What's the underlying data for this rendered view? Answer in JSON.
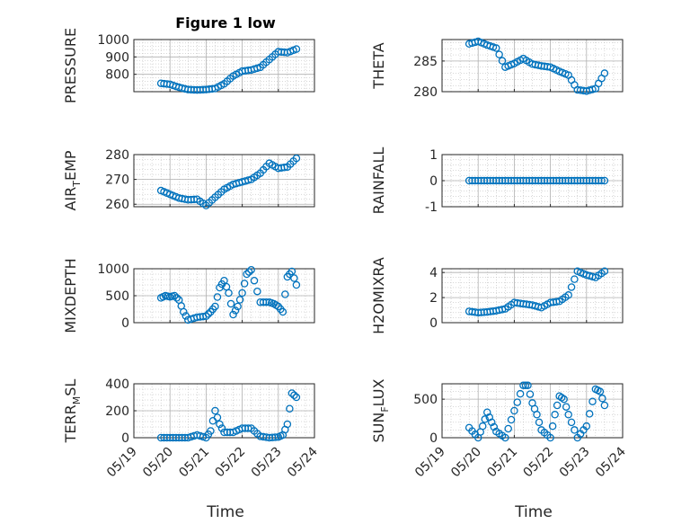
{
  "figure": {
    "title": "Figure 1 low"
  },
  "colors": {
    "marker": "#0072BD",
    "axis": "#262626",
    "grid": "#b0b0b0",
    "background": "#ffffff"
  },
  "chart_data": [
    {
      "type": "scatter",
      "ylabel": "PRESSURE",
      "ylabel_sub": "",
      "ylabel_rest": "",
      "yticks": [
        "800",
        "900",
        "1000"
      ],
      "ylim": [
        700,
        1000
      ],
      "ytick_values": [
        800,
        900,
        1000
      ],
      "x": [
        "05/19 18:00",
        "05/20 00:00",
        "05/20 06:00",
        "05/20 12:00",
        "05/20 18:00",
        "05/21 00:00",
        "05/21 06:00",
        "05/21 12:00",
        "05/21 18:00",
        "05/22 00:00",
        "05/22 06:00",
        "05/22 12:00",
        "05/22 18:00",
        "05/23 00:00",
        "05/23 06:00",
        "05/23 12:00"
      ],
      "y": [
        748,
        742,
        725,
        712,
        710,
        712,
        718,
        745,
        790,
        818,
        825,
        840,
        885,
        930,
        925,
        945
      ]
    },
    {
      "type": "scatter",
      "ylabel": "THETA",
      "ylabel_sub": "",
      "ylabel_rest": "",
      "yticks": [
        "280",
        "285"
      ],
      "ylim": [
        280,
        288.5
      ],
      "ytick_values": [
        280,
        285
      ],
      "x": [
        "05/19 18:00",
        "05/20 00:00",
        "05/20 06:00",
        "05/20 12:00",
        "05/20 18:00",
        "05/21 00:00",
        "05/21 06:00",
        "05/21 12:00",
        "05/21 18:00",
        "05/22 00:00",
        "05/22 06:00",
        "05/22 12:00",
        "05/22 18:00",
        "05/23 00:00",
        "05/23 06:00",
        "05/23 12:00"
      ],
      "y": [
        287.8,
        288.2,
        287.6,
        287.1,
        284.0,
        284.6,
        285.4,
        284.5,
        284.2,
        284.0,
        283.3,
        282.7,
        280.3,
        280.1,
        280.5,
        283.0
      ]
    },
    {
      "type": "scatter",
      "ylabel": "AIR",
      "ylabel_sub": "T",
      "ylabel_rest": "EMP",
      "yticks": [
        "260",
        "270",
        "280"
      ],
      "ylim": [
        259,
        280
      ],
      "ytick_values": [
        260,
        270,
        280
      ],
      "x": [
        "05/19 18:00",
        "05/20 00:00",
        "05/20 06:00",
        "05/20 12:00",
        "05/20 18:00",
        "05/21 00:00",
        "05/21 06:00",
        "05/21 12:00",
        "05/21 18:00",
        "05/22 00:00",
        "05/22 06:00",
        "05/22 12:00",
        "05/22 18:00",
        "05/23 00:00",
        "05/23 06:00",
        "05/23 12:00"
      ],
      "y": [
        265.5,
        264.0,
        262.5,
        261.8,
        262.0,
        259.5,
        262.8,
        266.0,
        268.0,
        269.0,
        270.0,
        272.5,
        276.5,
        274.5,
        275.0,
        278.5
      ]
    },
    {
      "type": "scatter",
      "ylabel": "RAINFALL",
      "ylabel_sub": "",
      "ylabel_rest": "",
      "yticks": [
        "-1",
        "0",
        "1"
      ],
      "ylim": [
        -1,
        1
      ],
      "ytick_values": [
        -1,
        0,
        1
      ],
      "x": [
        "05/19 18:00",
        "05/20 00:00",
        "05/20 06:00",
        "05/20 12:00",
        "05/20 18:00",
        "05/21 00:00",
        "05/21 06:00",
        "05/21 12:00",
        "05/21 18:00",
        "05/22 00:00",
        "05/22 06:00",
        "05/22 12:00",
        "05/22 18:00",
        "05/23 00:00",
        "05/23 06:00",
        "05/23 12:00"
      ],
      "y": [
        0,
        0,
        0,
        0,
        0,
        0,
        0,
        0,
        0,
        0,
        0,
        0,
        0,
        0,
        0,
        0
      ]
    },
    {
      "type": "scatter",
      "ylabel": "MIXDEPTH",
      "ylabel_sub": "",
      "ylabel_rest": "",
      "yticks": [
        "0",
        "500",
        "1000"
      ],
      "ylim": [
        0,
        1000
      ],
      "ytick_values": [
        0,
        500,
        1000
      ],
      "x": [
        "05/19 18:00",
        "05/19 21:00",
        "05/20 00:00",
        "05/20 03:00",
        "05/20 06:00",
        "05/20 09:00",
        "05/20 12:00",
        "05/20 18:00",
        "05/21 00:00",
        "05/21 03:00",
        "05/21 06:00",
        "05/21 09:00",
        "05/21 12:00",
        "05/21 15:00",
        "05/21 18:00",
        "05/21 21:00",
        "05/22 00:00",
        "05/22 03:00",
        "05/22 06:00",
        "05/22 12:00",
        "05/22 18:00",
        "05/22 21:00",
        "05/23 00:00",
        "05/23 03:00",
        "05/23 06:00",
        "05/23 09:00",
        "05/23 12:00"
      ],
      "y": [
        460,
        500,
        480,
        500,
        420,
        200,
        50,
        100,
        120,
        200,
        300,
        650,
        780,
        550,
        150,
        300,
        550,
        900,
        980,
        380,
        380,
        350,
        300,
        200,
        850,
        950,
        700
      ]
    },
    {
      "type": "scatter",
      "ylabel": "H2OMIXRA",
      "ylabel_sub": "",
      "ylabel_rest": "",
      "yticks": [
        "0",
        "2",
        "4"
      ],
      "ylim": [
        0,
        4.3
      ],
      "ytick_values": [
        0,
        2,
        4
      ],
      "x": [
        "05/19 18:00",
        "05/20 00:00",
        "05/20 06:00",
        "05/20 12:00",
        "05/20 18:00",
        "05/21 00:00",
        "05/21 06:00",
        "05/21 12:00",
        "05/21 18:00",
        "05/22 00:00",
        "05/22 06:00",
        "05/22 12:00",
        "05/22 18:00",
        "05/23 00:00",
        "05/23 06:00",
        "05/23 12:00"
      ],
      "y": [
        0.9,
        0.8,
        0.85,
        0.95,
        1.1,
        1.6,
        1.5,
        1.4,
        1.2,
        1.6,
        1.7,
        2.2,
        4.1,
        3.8,
        3.6,
        4.1
      ]
    },
    {
      "type": "scatter",
      "ylabel": "TERR",
      "ylabel_sub": "M",
      "ylabel_rest": "SL",
      "yticks": [
        "0",
        "200",
        "400"
      ],
      "ylim": [
        0,
        400
      ],
      "ytick_values": [
        0,
        200,
        400
      ],
      "x": [
        "05/19 18:00",
        "05/20 00:00",
        "05/20 06:00",
        "05/20 12:00",
        "05/20 18:00",
        "05/21 00:00",
        "05/21 03:00",
        "05/21 06:00",
        "05/21 09:00",
        "05/21 12:00",
        "05/21 18:00",
        "05/22 00:00",
        "05/22 06:00",
        "05/22 12:00",
        "05/22 18:00",
        "05/23 00:00",
        "05/23 03:00",
        "05/23 06:00",
        "05/23 09:00",
        "05/23 12:00"
      ],
      "y": [
        0,
        0,
        0,
        0,
        20,
        0,
        50,
        200,
        100,
        40,
        40,
        70,
        70,
        10,
        0,
        5,
        20,
        100,
        330,
        300
      ]
    },
    {
      "type": "scatter",
      "ylabel": "SUN",
      "ylabel_sub": "F",
      "ylabel_rest": "LUX",
      "yticks": [
        "0",
        "500"
      ],
      "ylim": [
        0,
        700
      ],
      "ytick_values": [
        0,
        500
      ],
      "x": [
        "05/19 18:00",
        "05/20 00:00",
        "05/20 03:00",
        "05/20 06:00",
        "05/20 09:00",
        "05/20 12:00",
        "05/20 18:00",
        "05/21 00:00",
        "05/21 06:00",
        "05/21 09:00",
        "05/21 12:00",
        "05/21 15:00",
        "05/21 18:00",
        "05/22 00:00",
        "05/22 03:00",
        "05/22 06:00",
        "05/22 09:00",
        "05/22 12:00",
        "05/22 18:00",
        "05/23 00:00",
        "05/23 06:00",
        "05/23 09:00",
        "05/23 12:00"
      ],
      "y": [
        130,
        0,
        150,
        330,
        200,
        80,
        0,
        350,
        680,
        680,
        450,
        300,
        100,
        0,
        300,
        540,
        500,
        300,
        0,
        150,
        630,
        600,
        420
      ]
    }
  ],
  "xaxis": {
    "range": [
      "05/19 00:00",
      "05/24 00:00"
    ],
    "ticks": [
      "05/19",
      "05/20",
      "05/21",
      "05/22",
      "05/23",
      "05/24"
    ],
    "label": "Time"
  }
}
